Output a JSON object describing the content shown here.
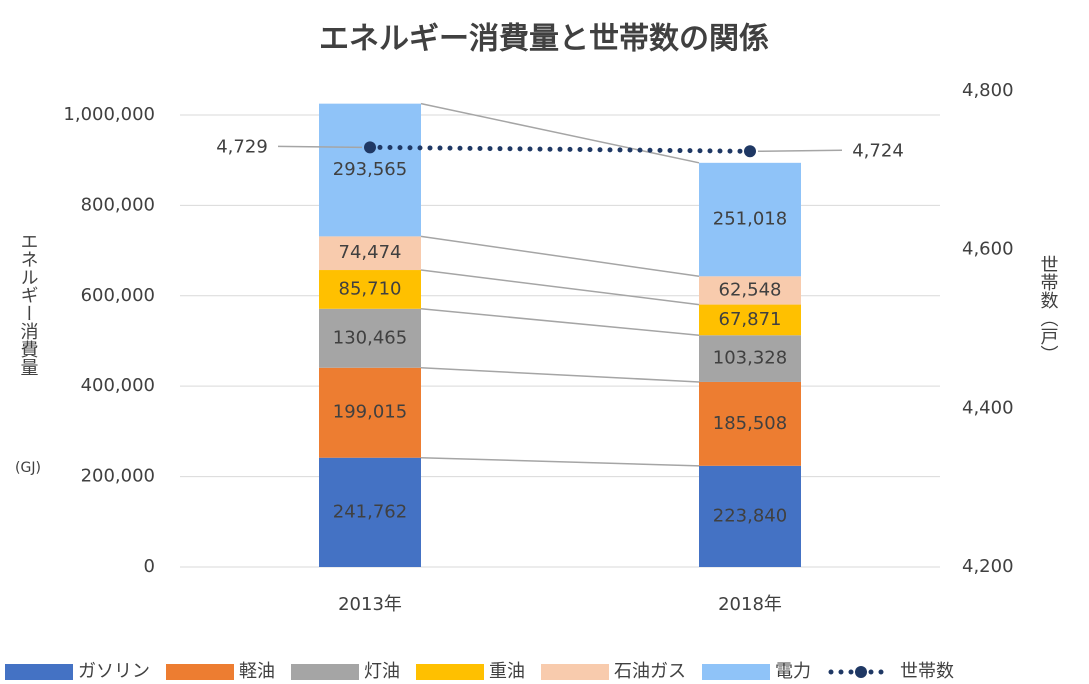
{
  "chart_data": {
    "type": "bar",
    "stacked": true,
    "title": "エネルギー消費量と世帯数の関係",
    "ylabel": "エネルギー消費量",
    "ylabel_unit": "(GJ)",
    "y2label": "世帯数（戸）",
    "categories": [
      "2013年",
      "2018年"
    ],
    "series": [
      {
        "name": "ガソリン",
        "color": "#4472c4",
        "values": [
          241762,
          223840
        ],
        "value_labels": [
          "241,762",
          "223,840"
        ]
      },
      {
        "name": "軽油",
        "color": "#ed7d31",
        "values": [
          199015,
          185508
        ],
        "value_labels": [
          "199,015",
          "185,508"
        ]
      },
      {
        "name": "灯油",
        "color": "#a5a5a5",
        "values": [
          130465,
          103328
        ],
        "value_labels": [
          "130,465",
          "103,328"
        ]
      },
      {
        "name": "重油",
        "color": "#ffc000",
        "values": [
          85710,
          67871
        ],
        "value_labels": [
          "85,710",
          "67,871"
        ]
      },
      {
        "name": "石油ガス",
        "color": "#f8cbad",
        "values": [
          74474,
          62548
        ],
        "value_labels": [
          "74,474",
          "62,548"
        ]
      },
      {
        "name": "電力",
        "color": "#8fc3f8",
        "values": [
          293565,
          251018
        ],
        "value_labels": [
          "293,565",
          "251,018"
        ]
      },
      {
        "name": "世帯数",
        "type": "line",
        "axis": "y2",
        "color": "#1f3864",
        "values": [
          4729,
          4724
        ],
        "value_labels": [
          "4,729",
          "4,724"
        ]
      }
    ],
    "ylim": [
      0,
      1053000
    ],
    "yticks": [
      0,
      {
        "value": 200000,
        "label": "200,000"
      },
      {
        "value": 400000,
        "label": "400,000"
      },
      {
        "value": 600000,
        "label": "600,000"
      },
      {
        "value": 800000,
        "label": "800,000"
      },
      {
        "value": 1000000,
        "label": "1,000,000"
      }
    ],
    "y2lim": [
      4200,
      4800
    ],
    "y2ticks": [
      {
        "value": 4200,
        "label": "4,200"
      },
      {
        "value": 4400,
        "label": "4,400"
      },
      {
        "value": 4600,
        "label": "4,600"
      },
      {
        "value": 4800,
        "label": "4,800"
      }
    ],
    "grid": true,
    "legend": "bottom"
  }
}
